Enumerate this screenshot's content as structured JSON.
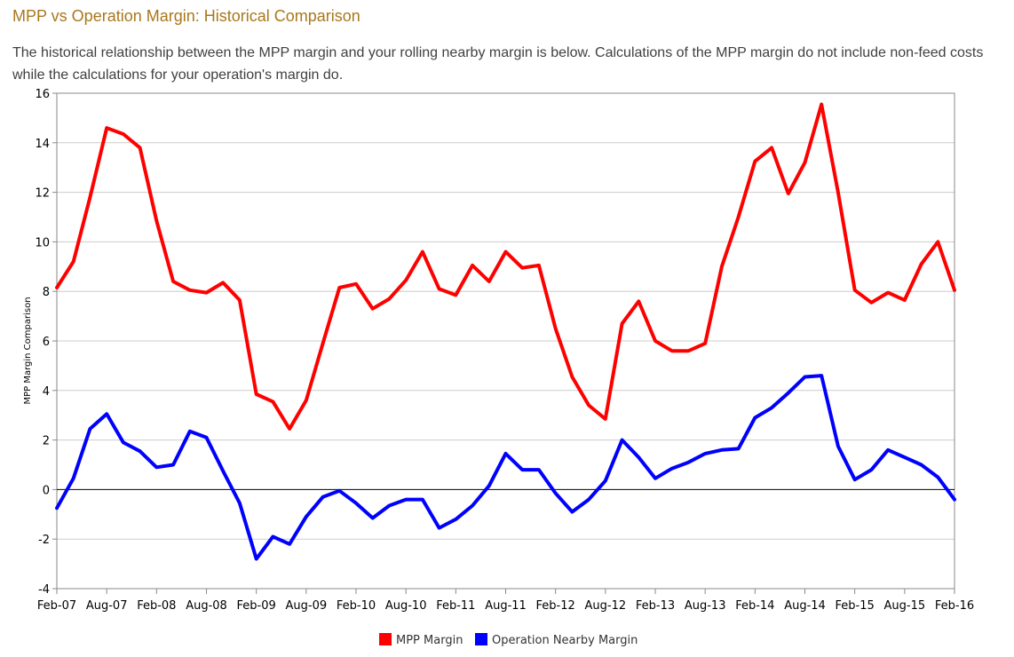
{
  "page": {
    "title": "MPP vs Operation Margin: Historical Comparison",
    "description": "The historical relationship between the MPP margin and your rolling nearby margin is below. Calculations of the MPP margin do not include non-feed costs while the calculations for your operation's margin do."
  },
  "chart_data": {
    "type": "line",
    "ylabel": "MPP Margin Comparison",
    "xlabel": "",
    "ylim": [
      -4,
      16
    ],
    "yticks": [
      -4,
      -2,
      0,
      2,
      4,
      6,
      8,
      10,
      12,
      14,
      16
    ],
    "xticks": [
      "Feb-07",
      "Aug-07",
      "Feb-08",
      "Aug-08",
      "Feb-09",
      "Aug-09",
      "Feb-10",
      "Aug-10",
      "Feb-11",
      "Aug-11",
      "Feb-12",
      "Aug-12",
      "Feb-13",
      "Aug-13",
      "Feb-14",
      "Aug-14",
      "Feb-15",
      "Aug-15",
      "Feb-16"
    ],
    "grid": "horizontal",
    "legend_position": "bottom",
    "x_note": "one point every two months, Feb-07 through Feb-16",
    "series": [
      {
        "name": "MPP Margin",
        "color": "#ff0000",
        "values": [
          8.15,
          9.2,
          11.8,
          14.6,
          14.35,
          13.8,
          10.85,
          8.4,
          8.05,
          7.95,
          8.35,
          7.65,
          3.85,
          3.55,
          2.45,
          3.6,
          5.9,
          8.15,
          8.3,
          7.3,
          7.7,
          8.45,
          9.6,
          8.1,
          7.85,
          9.05,
          8.4,
          9.6,
          8.95,
          9.05,
          6.5,
          4.55,
          3.4,
          2.85,
          6.7,
          7.6,
          6.0,
          5.6,
          5.6,
          5.9,
          9.0,
          11.0,
          13.25,
          13.8,
          11.95,
          13.2,
          15.55,
          12.0,
          8.05,
          7.55,
          7.95,
          7.65,
          9.1,
          10.0,
          8.05
        ]
      },
      {
        "name": "Operation Nearby Margin",
        "color": "#0000ff",
        "values": [
          -0.75,
          0.45,
          2.45,
          3.05,
          1.9,
          1.55,
          0.9,
          1.0,
          2.35,
          2.1,
          0.75,
          -0.55,
          -2.8,
          -1.9,
          -2.2,
          -1.1,
          -0.3,
          -0.05,
          -0.55,
          -1.15,
          -0.65,
          -0.4,
          -0.4,
          -1.55,
          -1.2,
          -0.65,
          0.15,
          1.45,
          0.8,
          0.8,
          -0.15,
          -0.9,
          -0.4,
          0.35,
          2.0,
          1.3,
          0.45,
          0.85,
          1.1,
          1.45,
          1.6,
          1.65,
          2.9,
          3.3,
          3.9,
          4.55,
          4.6,
          1.75,
          0.4,
          0.8,
          1.6,
          1.3,
          1.0,
          0.5,
          -0.4
        ]
      }
    ]
  }
}
